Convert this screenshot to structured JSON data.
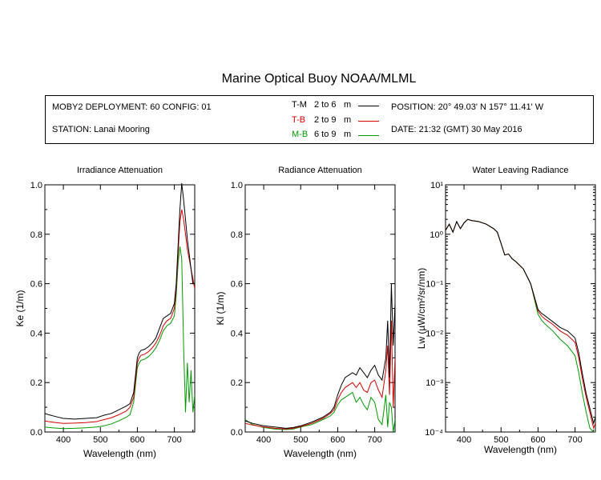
{
  "title": "Marine Optical Buoy NOAA/MLML",
  "info": {
    "deployment": "MOBY2 DEPLOYMENT: 60 CONFIG: 01",
    "station": "STATION: Lanai Mooring",
    "position": "POSITION: 20° 49.03' N   157° 11.41' W",
    "date": "DATE: 21:32 (GMT) 30 May 2016",
    "legend": [
      {
        "tag": "T-M",
        "range": "2 to 6",
        "unit": "m",
        "color": "#000000"
      },
      {
        "tag": "T-B",
        "range": "2 to 9",
        "unit": "m",
        "color": "#d40000"
      },
      {
        "tag": "M-B",
        "range": "6 to 9",
        "unit": "m",
        "color": "#009a00"
      }
    ]
  },
  "chart_data": [
    {
      "type": "line",
      "title": "Irradiance Attenuation",
      "xlabel": "Wavelength (nm)",
      "ylabel": "Ke  (1/m)",
      "xlim": [
        350,
        755
      ],
      "ylim": [
        0,
        1
      ],
      "xticks": [
        "400",
        "500",
        "600",
        "700"
      ],
      "yticks": [
        "0.0",
        "0.2",
        "0.4",
        "0.6",
        "0.8",
        "1.0"
      ],
      "x": [
        350,
        360,
        380,
        400,
        430,
        460,
        490,
        510,
        530,
        550,
        570,
        580,
        590,
        600,
        605,
        610,
        620,
        630,
        640,
        650,
        660,
        670,
        680,
        690,
        700,
        705,
        710,
        715,
        720,
        725,
        730,
        735,
        740,
        745,
        750,
        755
      ],
      "series": [
        {
          "color": "#000000",
          "values": [
            0.075,
            0.07,
            0.062,
            0.055,
            0.052,
            0.055,
            0.058,
            0.068,
            0.075,
            0.09,
            0.105,
            0.115,
            0.16,
            0.3,
            0.32,
            0.33,
            0.335,
            0.345,
            0.36,
            0.38,
            0.42,
            0.46,
            0.47,
            0.48,
            0.52,
            0.6,
            0.75,
            0.9,
            1.02,
            0.94,
            0.86,
            0.78,
            0.72,
            0.66,
            0.6,
            0.6
          ]
        },
        {
          "color": "#d40000",
          "values": [
            0.045,
            0.042,
            0.038,
            0.035,
            0.036,
            0.038,
            0.042,
            0.05,
            0.058,
            0.07,
            0.085,
            0.1,
            0.14,
            0.28,
            0.3,
            0.31,
            0.315,
            0.325,
            0.34,
            0.36,
            0.39,
            0.43,
            0.45,
            0.46,
            0.5,
            0.58,
            0.72,
            0.85,
            0.9,
            0.86,
            0.8,
            0.74,
            0.7,
            0.66,
            0.62,
            0.58
          ]
        },
        {
          "color": "#009a00",
          "values": [
            0.02,
            0.018,
            0.016,
            0.014,
            0.015,
            0.017,
            0.02,
            0.025,
            0.033,
            0.045,
            0.06,
            0.07,
            0.12,
            0.26,
            0.28,
            0.29,
            0.295,
            0.305,
            0.32,
            0.34,
            0.37,
            0.41,
            0.43,
            0.44,
            0.47,
            0.55,
            0.68,
            0.75,
            0.7,
            0.35,
            0.08,
            0.28,
            0.12,
            0.25,
            0.08,
            0.15
          ]
        }
      ]
    },
    {
      "type": "line",
      "title": "Radiance Attenuation",
      "xlabel": "Wavelength (nm)",
      "ylabel": "Kl  (1/m)",
      "xlim": [
        350,
        755
      ],
      "ylim": [
        0,
        1
      ],
      "xticks": [
        "400",
        "500",
        "600",
        "700"
      ],
      "yticks": [
        "0.0",
        "0.2",
        "0.4",
        "0.6",
        "0.8",
        "1.0"
      ],
      "x": [
        350,
        370,
        400,
        430,
        460,
        480,
        500,
        530,
        560,
        580,
        590,
        600,
        610,
        620,
        630,
        640,
        650,
        660,
        670,
        680,
        690,
        700,
        710,
        720,
        730,
        735,
        740,
        745,
        750,
        755
      ],
      "series": [
        {
          "color": "#000000",
          "values": [
            0.045,
            0.035,
            0.025,
            0.02,
            0.015,
            0.018,
            0.025,
            0.04,
            0.06,
            0.08,
            0.1,
            0.15,
            0.19,
            0.22,
            0.23,
            0.24,
            0.23,
            0.26,
            0.24,
            0.22,
            0.25,
            0.27,
            0.23,
            0.21,
            0.3,
            0.45,
            0.22,
            0.6,
            0.35,
            0.52
          ]
        },
        {
          "color": "#d40000",
          "values": [
            0.035,
            0.028,
            0.02,
            0.015,
            0.012,
            0.015,
            0.022,
            0.035,
            0.055,
            0.075,
            0.09,
            0.13,
            0.16,
            0.18,
            0.19,
            0.2,
            0.18,
            0.2,
            0.17,
            0.16,
            0.2,
            0.21,
            0.17,
            0.14,
            0.25,
            0.35,
            0.15,
            0.45,
            0.1,
            0.3
          ]
        },
        {
          "color": "#009a00",
          "values": [
            0.05,
            0.03,
            0.018,
            0.012,
            0.01,
            0.012,
            0.02,
            0.03,
            0.05,
            0.065,
            0.08,
            0.11,
            0.13,
            0.14,
            0.15,
            0.16,
            0.12,
            0.14,
            0.11,
            0.09,
            0.14,
            0.12,
            0.05,
            0.03,
            0.15,
            0.02,
            0.12,
            0.1,
            0.0,
            0.05
          ]
        }
      ]
    },
    {
      "type": "line",
      "title": "Water Leaving Radiance",
      "xlabel": "Wavelength (nm)",
      "ylabel": "Lw  (µW/cm²/sr/nm)",
      "xlim": [
        350,
        755
      ],
      "ylim": [
        0.0001,
        10
      ],
      "yscale": "log",
      "xticks": [
        "400",
        "500",
        "600",
        "700"
      ],
      "yticks": [
        "10⁻⁴",
        "10⁻³",
        "10⁻²",
        "10⁻¹",
        "10⁰",
        "10¹"
      ],
      "x": [
        350,
        360,
        370,
        380,
        390,
        400,
        410,
        420,
        440,
        460,
        480,
        490,
        500,
        510,
        520,
        530,
        540,
        560,
        580,
        600,
        610,
        620,
        640,
        660,
        680,
        700,
        710,
        720,
        730,
        740,
        750,
        755
      ],
      "series": [
        {
          "color": "#000000",
          "values": [
            1.2,
            1.6,
            1.1,
            1.8,
            1.3,
            1.7,
            2.0,
            1.9,
            1.8,
            1.6,
            1.3,
            1.1,
            0.65,
            0.38,
            0.4,
            0.32,
            0.28,
            0.2,
            0.1,
            0.03,
            0.025,
            0.022,
            0.017,
            0.013,
            0.011,
            0.008,
            0.004,
            0.0015,
            0.0006,
            0.0003,
            0.00015,
            0.0002
          ]
        },
        {
          "color": "#d40000",
          "values": [
            1.2,
            1.6,
            1.1,
            1.8,
            1.3,
            1.7,
            2.0,
            1.9,
            1.8,
            1.6,
            1.3,
            1.1,
            0.65,
            0.38,
            0.4,
            0.32,
            0.28,
            0.2,
            0.1,
            0.028,
            0.022,
            0.019,
            0.015,
            0.011,
            0.009,
            0.0065,
            0.0032,
            0.0012,
            0.0005,
            0.00025,
            0.00012,
            0.00015
          ]
        },
        {
          "color": "#009a00",
          "values": [
            1.2,
            1.6,
            1.1,
            1.8,
            1.3,
            1.7,
            2.0,
            1.9,
            1.8,
            1.6,
            1.3,
            1.1,
            0.65,
            0.38,
            0.4,
            0.32,
            0.28,
            0.2,
            0.1,
            0.024,
            0.018,
            0.015,
            0.011,
            0.0075,
            0.0055,
            0.0035,
            0.0016,
            0.0006,
            0.00025,
            0.00012,
            0.0001,
            0.0001
          ]
        }
      ]
    }
  ]
}
